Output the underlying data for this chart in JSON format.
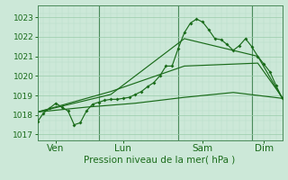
{
  "background_color": "#cce8d8",
  "grid_color_major": "#99ccaa",
  "grid_color_minor": "#b8ddc8",
  "line_color": "#1a6b1a",
  "spine_color": "#4a8a5a",
  "title": "Pression niveau de la mer( hPa )",
  "ylim": [
    1016.7,
    1023.6
  ],
  "yticks": [
    1017,
    1018,
    1019,
    1020,
    1021,
    1022,
    1023
  ],
  "xlim": [
    0,
    24
  ],
  "day_labels": [
    "Ven",
    "Lun",
    "Sam",
    "Dim"
  ],
  "vline_x": [
    3.0,
    12.0,
    18.0
  ],
  "line1_x": [
    0.0,
    0.5,
    1.0,
    1.5,
    2.0,
    2.5,
    3.0,
    3.5,
    4.0,
    4.5,
    5.0,
    5.5,
    6.0,
    6.5,
    7.0,
    7.5,
    8.0,
    8.5,
    9.0,
    9.5,
    10.0,
    10.5,
    11.0,
    11.5,
    12.0,
    12.5,
    13.0,
    13.5,
    14.0,
    14.5,
    15.0,
    15.5,
    16.0,
    16.5,
    17.0,
    17.5,
    18.0,
    18.5,
    19.0,
    19.5,
    20.0
  ],
  "line1_y": [
    1017.65,
    1018.1,
    1018.35,
    1018.6,
    1018.4,
    1018.2,
    1017.5,
    1017.6,
    1018.2,
    1018.55,
    1018.65,
    1018.75,
    1018.8,
    1018.8,
    1018.85,
    1018.9,
    1019.05,
    1019.2,
    1019.45,
    1019.65,
    1020.0,
    1020.5,
    1020.5,
    1021.4,
    1022.2,
    1022.7,
    1022.9,
    1022.75,
    1022.35,
    1021.9,
    1021.85,
    1021.6,
    1021.3,
    1021.55,
    1021.9,
    1021.5,
    1021.0,
    1020.6,
    1020.2,
    1019.5,
    1018.85
  ],
  "line2_x": [
    0.0,
    6.0,
    12.0,
    18.0,
    20.0
  ],
  "line2_y": [
    1018.15,
    1019.05,
    1021.9,
    1021.0,
    1018.85
  ],
  "line3_x": [
    0.0,
    6.0,
    12.0,
    18.0,
    20.0
  ],
  "line3_y": [
    1018.15,
    1019.2,
    1020.5,
    1020.65,
    1018.9
  ],
  "line4_x": [
    0.0,
    4.0,
    8.0,
    12.0,
    16.0,
    20.0
  ],
  "line4_y": [
    1018.15,
    1018.4,
    1018.6,
    1018.9,
    1019.15,
    1018.85
  ],
  "ylabel_fontsize": 6.5,
  "xlabel_fontsize": 7.5,
  "xtick_fontsize": 7.5
}
